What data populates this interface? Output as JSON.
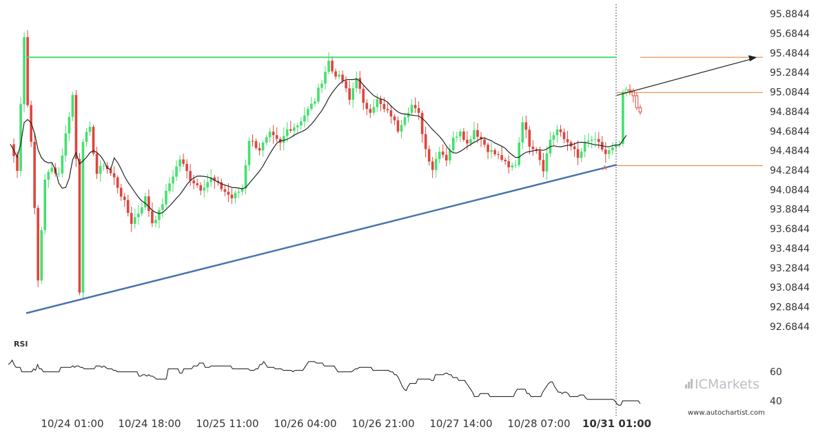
{
  "chart_data": {
    "type": "candlestick",
    "ylim": [
      92.5844,
      95.9844
    ],
    "y_ticks": [
      "95.8844",
      "95.6844",
      "95.4844",
      "95.2844",
      "95.0844",
      "94.8844",
      "94.6844",
      "94.4844",
      "94.2844",
      "94.0844",
      "93.8844",
      "93.6844",
      "93.4844",
      "93.2844",
      "93.0844",
      "92.8844",
      "92.6844"
    ],
    "x_ticks": [
      {
        "label": "10/24 01:00",
        "bold": false
      },
      {
        "label": "10/24 18:00",
        "bold": false
      },
      {
        "label": "10/25 11:00",
        "bold": false
      },
      {
        "label": "10/26 04:00",
        "bold": false
      },
      {
        "label": "10/26 21:00",
        "bold": false
      },
      {
        "label": "10/27 14:00",
        "bold": false
      },
      {
        "label": "10/28 07:00",
        "bold": false
      },
      {
        "label": "10/31 01:00",
        "bold": true
      }
    ],
    "resistance_level": 95.44,
    "support_line": {
      "start": 92.82,
      "end": 94.34
    },
    "projection": {
      "from": 95.05,
      "to": 95.44
    },
    "orange_levels": [
      95.44,
      95.08,
      94.33
    ],
    "point_label": "A",
    "moving_average_color": "#222222",
    "colors": {
      "up": "#44e06e",
      "down": "#e0443c",
      "resistance": "#44e06e",
      "support": "#4a72b0",
      "levels": "#e07b2a"
    },
    "rsi": {
      "label": "RSI",
      "ylim": [
        30,
        75
      ],
      "y_ticks": [
        "60",
        "40"
      ],
      "values": [
        65,
        66,
        68,
        65,
        63,
        63,
        63,
        60,
        60,
        60,
        60,
        60,
        60,
        62,
        61,
        65,
        62,
        62,
        60,
        60,
        60,
        60,
        60,
        60,
        60,
        60,
        60,
        63,
        63,
        63,
        63,
        63,
        63,
        64,
        63,
        64,
        64,
        63,
        63,
        62,
        62,
        62,
        62,
        62,
        62,
        64,
        64,
        64,
        63,
        64,
        63,
        62,
        62,
        62,
        61,
        61,
        60,
        60,
        60,
        60,
        60,
        60,
        60,
        60,
        60,
        60,
        60,
        57,
        57,
        58,
        58,
        57,
        58,
        57,
        57,
        56,
        55,
        55,
        55,
        55,
        55,
        55,
        62,
        62,
        62,
        62,
        62,
        62,
        59,
        59,
        62,
        62,
        62,
        62,
        62,
        64,
        64,
        64,
        66,
        66,
        66,
        63,
        63,
        63,
        64,
        64,
        64,
        64,
        64,
        64,
        64,
        64,
        64,
        64,
        64,
        62,
        62,
        62,
        62,
        62,
        62,
        62,
        62,
        62,
        61,
        61,
        61,
        62,
        62,
        65,
        65,
        67,
        65,
        63,
        63,
        63,
        63,
        62,
        62,
        62,
        62,
        61,
        61,
        61,
        61,
        61,
        60,
        61,
        61,
        61,
        61,
        61,
        63,
        65,
        67,
        67,
        67,
        67,
        66,
        66,
        66,
        66,
        64,
        64,
        64,
        64,
        64,
        64,
        62,
        60,
        60,
        60,
        60,
        60,
        60,
        60,
        60,
        61,
        62,
        62,
        63,
        63,
        63,
        63,
        63,
        63,
        63,
        61,
        61,
        61,
        61,
        61,
        61,
        61,
        61,
        61,
        60,
        60,
        58,
        58,
        56,
        53,
        50,
        48,
        47,
        50,
        52,
        52,
        52,
        52,
        55,
        55,
        55,
        55,
        55,
        55,
        55,
        54,
        54,
        58,
        58,
        58,
        58,
        58,
        59,
        59,
        58,
        58,
        56,
        56,
        56,
        54,
        54,
        54,
        54,
        52,
        50,
        48,
        46,
        43,
        43,
        43,
        45,
        45,
        45,
        45,
        45,
        43,
        43,
        43,
        43,
        43,
        43,
        43,
        43,
        43,
        43,
        43,
        43,
        43,
        46,
        48,
        48,
        48,
        48,
        48,
        45,
        45,
        43,
        43,
        43,
        43,
        43,
        43,
        46,
        48,
        50,
        52,
        53,
        53,
        50,
        48,
        46,
        46,
        45,
        46,
        46,
        45,
        43,
        43,
        43,
        43,
        43,
        44,
        44,
        44,
        42,
        41,
        41,
        41,
        41,
        41,
        41,
        41,
        41,
        41,
        41,
        41,
        41,
        41,
        41,
        40,
        38,
        37,
        37,
        40,
        40,
        40,
        40,
        40,
        40,
        40,
        40,
        40,
        38
      ]
    }
  },
  "branding": {
    "logo_text": "ICMarkets",
    "website": "www.autochartist.com"
  }
}
